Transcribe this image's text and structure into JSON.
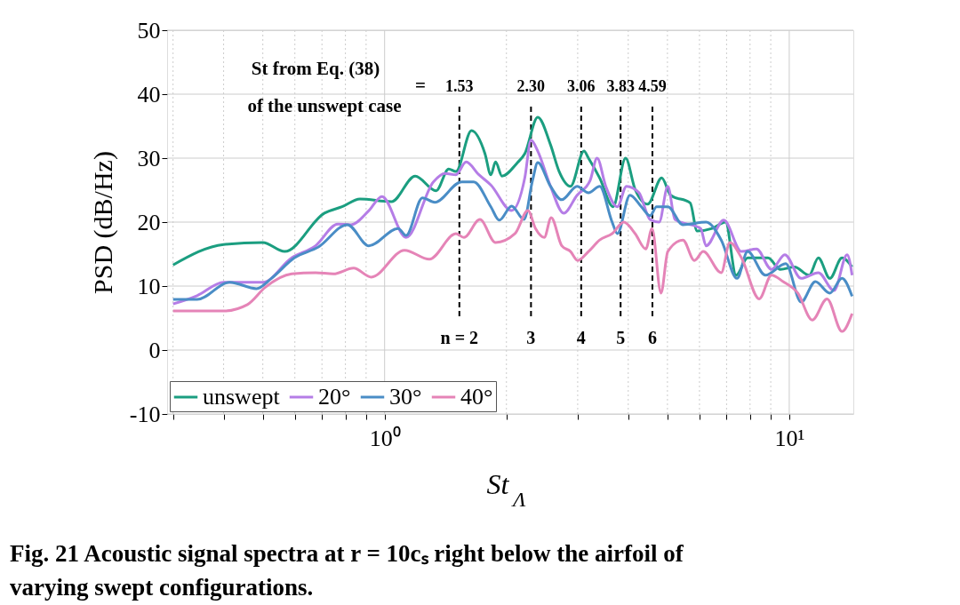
{
  "chart_data": {
    "type": "line",
    "xlabel": "St$_{Λ}$",
    "ylabel": "PSD (dB/Hz)",
    "log": "x",
    "grid": true,
    "legend": "bottom left",
    "xlim": [
      0.29,
      14.4
    ],
    "ylim": [
      -10,
      50
    ],
    "xticks": [
      {
        "value": 0.3,
        "label": null
      },
      {
        "value": 0.4,
        "label": null
      },
      {
        "value": 0.5,
        "label": null
      },
      {
        "value": 0.6,
        "label": null
      },
      {
        "value": 0.7,
        "label": null
      },
      {
        "value": 0.8,
        "label": null
      },
      {
        "value": 0.9,
        "label": null
      },
      {
        "value": 1,
        "label": "10⁰"
      },
      {
        "value": 2,
        "label": null
      },
      {
        "value": 3,
        "label": null
      },
      {
        "value": 4,
        "label": null
      },
      {
        "value": 5,
        "label": null
      },
      {
        "value": 6,
        "label": null
      },
      {
        "value": 7,
        "label": null
      },
      {
        "value": 8,
        "label": null
      },
      {
        "value": 9,
        "label": null
      },
      {
        "value": 10,
        "label": "10¹"
      }
    ],
    "yticks": [
      -10,
      0,
      10,
      20,
      30,
      40,
      50
    ],
    "series": [
      {
        "name": "unswept",
        "color": "#1b9e80",
        "x": [
          0.3,
          0.4,
          0.5,
          0.566,
          0.71,
          0.785,
          0.869,
          1.04,
          1.19,
          1.34,
          1.44,
          1.5,
          1.64,
          1.77,
          1.83,
          1.88,
          1.95,
          2.13,
          2.22,
          2.39,
          2.57,
          2.7,
          2.88,
          3.11,
          3.19,
          3.4,
          3.67,
          3.94,
          4.16,
          4.47,
          4.84,
          5.09,
          5.69,
          5.92,
          6.45,
          6.96,
          7.39,
          7.89,
          8.86,
          9.51,
          10.3,
          11.2,
          11.8,
          12.6,
          13.5,
          14.3
        ],
        "values": [
          13.3,
          16.5,
          16.8,
          15.4,
          21.4,
          22.4,
          23.6,
          23.2,
          27.2,
          24.9,
          28.3,
          27.9,
          34.3,
          30.7,
          27.4,
          29.4,
          27.2,
          29.3,
          30.7,
          36.4,
          32.1,
          27.9,
          25.6,
          31.1,
          30.0,
          26.9,
          22.4,
          30.0,
          25.1,
          22.8,
          26.9,
          24.2,
          23.0,
          18.6,
          19.0,
          20.0,
          11.7,
          14.4,
          14.4,
          12.6,
          13.0,
          11.7,
          14.4,
          11.2,
          14.4,
          13.0
        ]
      },
      {
        "name": "20°",
        "color": "#b57de6",
        "x": [
          0.3,
          0.344,
          0.4,
          0.5,
          0.589,
          0.675,
          0.766,
          0.826,
          0.914,
          0.985,
          1.13,
          1.32,
          1.41,
          1.5,
          1.59,
          1.71,
          1.83,
          2.06,
          2.22,
          2.3,
          2.39,
          2.57,
          2.77,
          2.99,
          3.22,
          3.35,
          3.52,
          3.76,
          3.96,
          4.25,
          4.53,
          4.77,
          5.01,
          5.22,
          6.04,
          6.23,
          6.89,
          7.62,
          8.3,
          9.04,
          9.75,
          10.7,
          11.8,
          12.9,
          13.9,
          14.3
        ],
        "values": [
          7.2,
          8.5,
          10.6,
          10.6,
          14.4,
          16.3,
          19.7,
          19.6,
          21.8,
          24.0,
          17.6,
          26.3,
          27.6,
          27.4,
          29.4,
          27.4,
          25.8,
          21.8,
          26.9,
          32.8,
          31.1,
          25.6,
          21.4,
          24.2,
          26.5,
          30.0,
          25.6,
          22.4,
          25.6,
          24.6,
          20.4,
          20.0,
          25.6,
          20.4,
          19.0,
          16.3,
          20.3,
          15.4,
          15.8,
          12.6,
          14.9,
          11.2,
          12.1,
          9.3,
          14.9,
          11.7
        ]
      },
      {
        "name": "30°",
        "color": "#4a8dc6",
        "x": [
          0.3,
          0.344,
          0.414,
          0.482,
          0.525,
          0.598,
          0.686,
          0.809,
          0.914,
          1.08,
          1.13,
          1.24,
          1.33,
          1.55,
          1.66,
          1.83,
          1.92,
          2.06,
          2.21,
          2.32,
          2.39,
          2.57,
          2.74,
          2.99,
          3.19,
          3.4,
          3.65,
          3.76,
          4.04,
          4.31,
          4.53,
          4.7,
          5.01,
          5.46,
          6.23,
          6.79,
          7.43,
          7.89,
          8.73,
          9.8,
          10.7,
          11.6,
          12.6,
          13.5,
          14.3
        ],
        "values": [
          7.9,
          7.9,
          10.6,
          9.6,
          11.2,
          14.4,
          16.1,
          19.6,
          16.3,
          19.0,
          17.9,
          23.8,
          23.1,
          26.3,
          26.3,
          22.4,
          20.3,
          22.5,
          20.4,
          26.5,
          29.3,
          25.6,
          23.5,
          25.6,
          24.6,
          25.6,
          20.0,
          18.2,
          24.2,
          22.4,
          21.0,
          22.4,
          22.4,
          19.6,
          20.0,
          17.2,
          11.2,
          15.4,
          11.7,
          13.5,
          7.5,
          10.7,
          8.9,
          11.2,
          8.4
        ]
      },
      {
        "name": "40°",
        "color": "#e584b7",
        "x": [
          0.3,
          0.4,
          0.458,
          0.507,
          0.589,
          0.675,
          0.747,
          0.838,
          0.927,
          1.12,
          1.29,
          1.5,
          1.57,
          1.72,
          1.88,
          2.1,
          2.26,
          2.36,
          2.48,
          2.58,
          2.74,
          2.88,
          3.0,
          3.19,
          3.4,
          3.65,
          3.9,
          4.16,
          4.42,
          4.58,
          4.82,
          5.01,
          5.46,
          5.83,
          6.13,
          6.79,
          7.13,
          7.62,
          8.43,
          9.04,
          9.66,
          10.5,
          11.4,
          12.4,
          13.5,
          14.3
        ],
        "values": [
          6.1,
          6.1,
          7.1,
          9.8,
          11.9,
          12.1,
          11.9,
          12.8,
          11.4,
          15.6,
          14.2,
          18.2,
          17.6,
          20.4,
          16.8,
          18.2,
          21.8,
          19.0,
          17.6,
          20.7,
          16.3,
          15.4,
          14.0,
          15.4,
          17.2,
          18.2,
          20.0,
          18.2,
          15.8,
          19.0,
          8.9,
          15.4,
          17.2,
          14.0,
          15.4,
          12.1,
          16.8,
          14.4,
          8.0,
          11.7,
          10.7,
          8.9,
          4.7,
          8.0,
          2.9,
          5.7
        ]
      }
    ],
    "ref_lines": [
      {
        "axis": "x",
        "value": 1.53,
        "label": "1.53",
        "color": "#000000",
        "line_style": "dashed"
      },
      {
        "axis": "x",
        "value": 2.3,
        "label": "2.30",
        "color": "#000000",
        "line_style": "dashed"
      },
      {
        "axis": "x",
        "value": 3.06,
        "label": "3.06",
        "color": "#000000",
        "line_style": "dashed"
      },
      {
        "axis": "x",
        "value": 3.83,
        "label": "3.83",
        "color": "#000000",
        "line_style": "dashed"
      },
      {
        "axis": "x",
        "value": 4.59,
        "label": "4.59",
        "color": "#000000",
        "line_style": "dashed"
      }
    ],
    "annotations": [
      "St from Eq. (38)",
      "of the unswept case",
      "=",
      "n = 2",
      "3",
      "4",
      "5",
      "6",
      "Fig. 21   Acoustic signal spectra at r = 10cₛ right below the airfoil of varying swept configurations."
    ]
  }
}
